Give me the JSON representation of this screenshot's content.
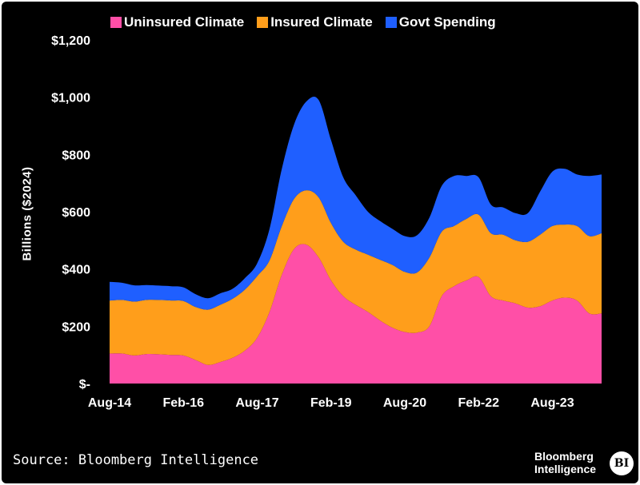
{
  "legend": {
    "items": [
      {
        "label": "Uninsured Climate",
        "color": "#ff4fa7"
      },
      {
        "label": "Insured Climate",
        "color": "#ff9e1b"
      },
      {
        "label": "Govt Spending",
        "color": "#1f5fff"
      }
    ]
  },
  "footer": {
    "source": "Source: Bloomberg Intelligence",
    "brand_line1": "Bloomberg",
    "brand_line2": "Intelligence",
    "logo": "BI"
  },
  "chart_data": {
    "type": "area",
    "stacked": true,
    "ylabel": "Billions ($2024)",
    "ylim": [
      0,
      1200
    ],
    "y_ticks": [
      0,
      200,
      400,
      600,
      800,
      1000,
      1200
    ],
    "y_tick_labels": [
      "$-",
      "$200",
      "$400",
      "$600",
      "$800",
      "$1,000",
      "$1,200"
    ],
    "x_tick_labels": [
      "Aug-14",
      "Feb-16",
      "Aug-17",
      "Feb-19",
      "Aug-20",
      "Feb-22",
      "Aug-23"
    ],
    "x_tick_index": [
      0,
      6,
      12,
      18,
      24,
      30,
      36
    ],
    "x": [
      "Aug-14",
      "Nov-14",
      "Feb-15",
      "May-15",
      "Aug-15",
      "Nov-15",
      "Feb-16",
      "May-16",
      "Aug-16",
      "Nov-16",
      "Feb-17",
      "May-17",
      "Aug-17",
      "Nov-17",
      "Feb-18",
      "May-18",
      "Aug-18",
      "Nov-18",
      "Feb-19",
      "May-19",
      "Aug-19",
      "Nov-19",
      "Feb-20",
      "May-20",
      "Aug-20",
      "Nov-20",
      "Feb-21",
      "May-21",
      "Aug-21",
      "Nov-21",
      "Feb-22",
      "May-22",
      "Aug-22",
      "Nov-22",
      "Feb-23",
      "May-23",
      "Aug-23",
      "Nov-23",
      "Feb-24",
      "May-24",
      "Aug-24"
    ],
    "grid": false,
    "legend_position": "top",
    "series": [
      {
        "name": "Uninsured Climate",
        "color": "#ff4fa7",
        "values": [
          105,
          105,
          98,
          103,
          102,
          100,
          98,
          82,
          65,
          75,
          90,
          115,
          160,
          250,
          380,
          470,
          485,
          440,
          360,
          305,
          275,
          250,
          220,
          195,
          180,
          178,
          200,
          305,
          340,
          360,
          372,
          305,
          290,
          280,
          265,
          270,
          290,
          300,
          290,
          245,
          245
        ]
      },
      {
        "name": "Insured Climate",
        "color": "#ff9e1b",
        "values": [
          185,
          187,
          188,
          189,
          190,
          190,
          190,
          185,
          193,
          200,
          206,
          213,
          215,
          180,
          170,
          175,
          190,
          210,
          200,
          190,
          193,
          200,
          212,
          219,
          210,
          210,
          240,
          225,
          210,
          215,
          218,
          220,
          230,
          220,
          230,
          250,
          260,
          255,
          260,
          270,
          280
        ]
      },
      {
        "name": "Govt Spending",
        "color": "#1f5fff",
        "values": [
          65,
          60,
          57,
          52,
          50,
          50,
          48,
          45,
          40,
          40,
          35,
          40,
          45,
          110,
          200,
          260,
          310,
          340,
          290,
          225,
          190,
          150,
          135,
          126,
          125,
          130,
          140,
          160,
          175,
          150,
          130,
          100,
          95,
          95,
          100,
          150,
          190,
          195,
          180,
          210,
          205
        ]
      }
    ]
  }
}
